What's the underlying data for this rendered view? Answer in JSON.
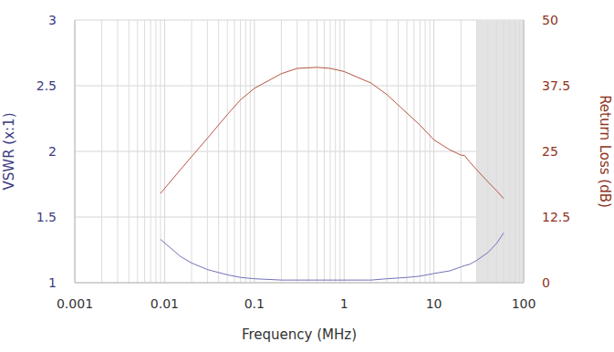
{
  "chart_data": {
    "type": "line",
    "xlabel": "Frequency (MHz)",
    "ylabel": "VSWR (x:1)",
    "y2label": "Return Loss (dB)",
    "x": [
      0.009,
      0.015,
      0.02,
      0.03,
      0.05,
      0.07,
      0.1,
      0.2,
      0.3,
      0.5,
      0.7,
      1,
      2,
      3,
      5,
      7,
      10,
      15,
      20,
      22,
      25,
      30,
      40,
      50,
      60
    ],
    "series": [
      {
        "color": "#7272b8",
        "axis": "y",
        "values": [
          1.33,
          1.2,
          1.15,
          1.1,
          1.06,
          1.04,
          1.03,
          1.02,
          1.02,
          1.02,
          1.02,
          1.02,
          1.02,
          1.03,
          1.04,
          1.05,
          1.07,
          1.09,
          1.12,
          1.13,
          1.14,
          1.17,
          1.23,
          1.3,
          1.38
        ]
      },
      {
        "color": "#b5553f",
        "axis": "y2",
        "values": [
          17,
          21.5,
          24,
          27.5,
          32,
          34.8,
          37,
          39.8,
          40.8,
          41,
          40.8,
          40.2,
          38,
          35.8,
          32.3,
          30,
          27.2,
          25.3,
          24.3,
          24.2,
          23,
          21.5,
          19.2,
          17.5,
          16
        ]
      }
    ],
    "xlim": [
      0.001,
      100
    ],
    "xticks": [
      0.001,
      0.01,
      0.1,
      1,
      10,
      100
    ],
    "ylim": [
      1,
      3
    ],
    "yticks": [
      1,
      1.5,
      2,
      2.5,
      3
    ],
    "y2lim": [
      0,
      50
    ],
    "y2ticks": [
      0,
      12.5,
      25,
      37.5,
      50
    ],
    "log": "x",
    "grid": true,
    "shaded_region": [
      30,
      100
    ]
  }
}
